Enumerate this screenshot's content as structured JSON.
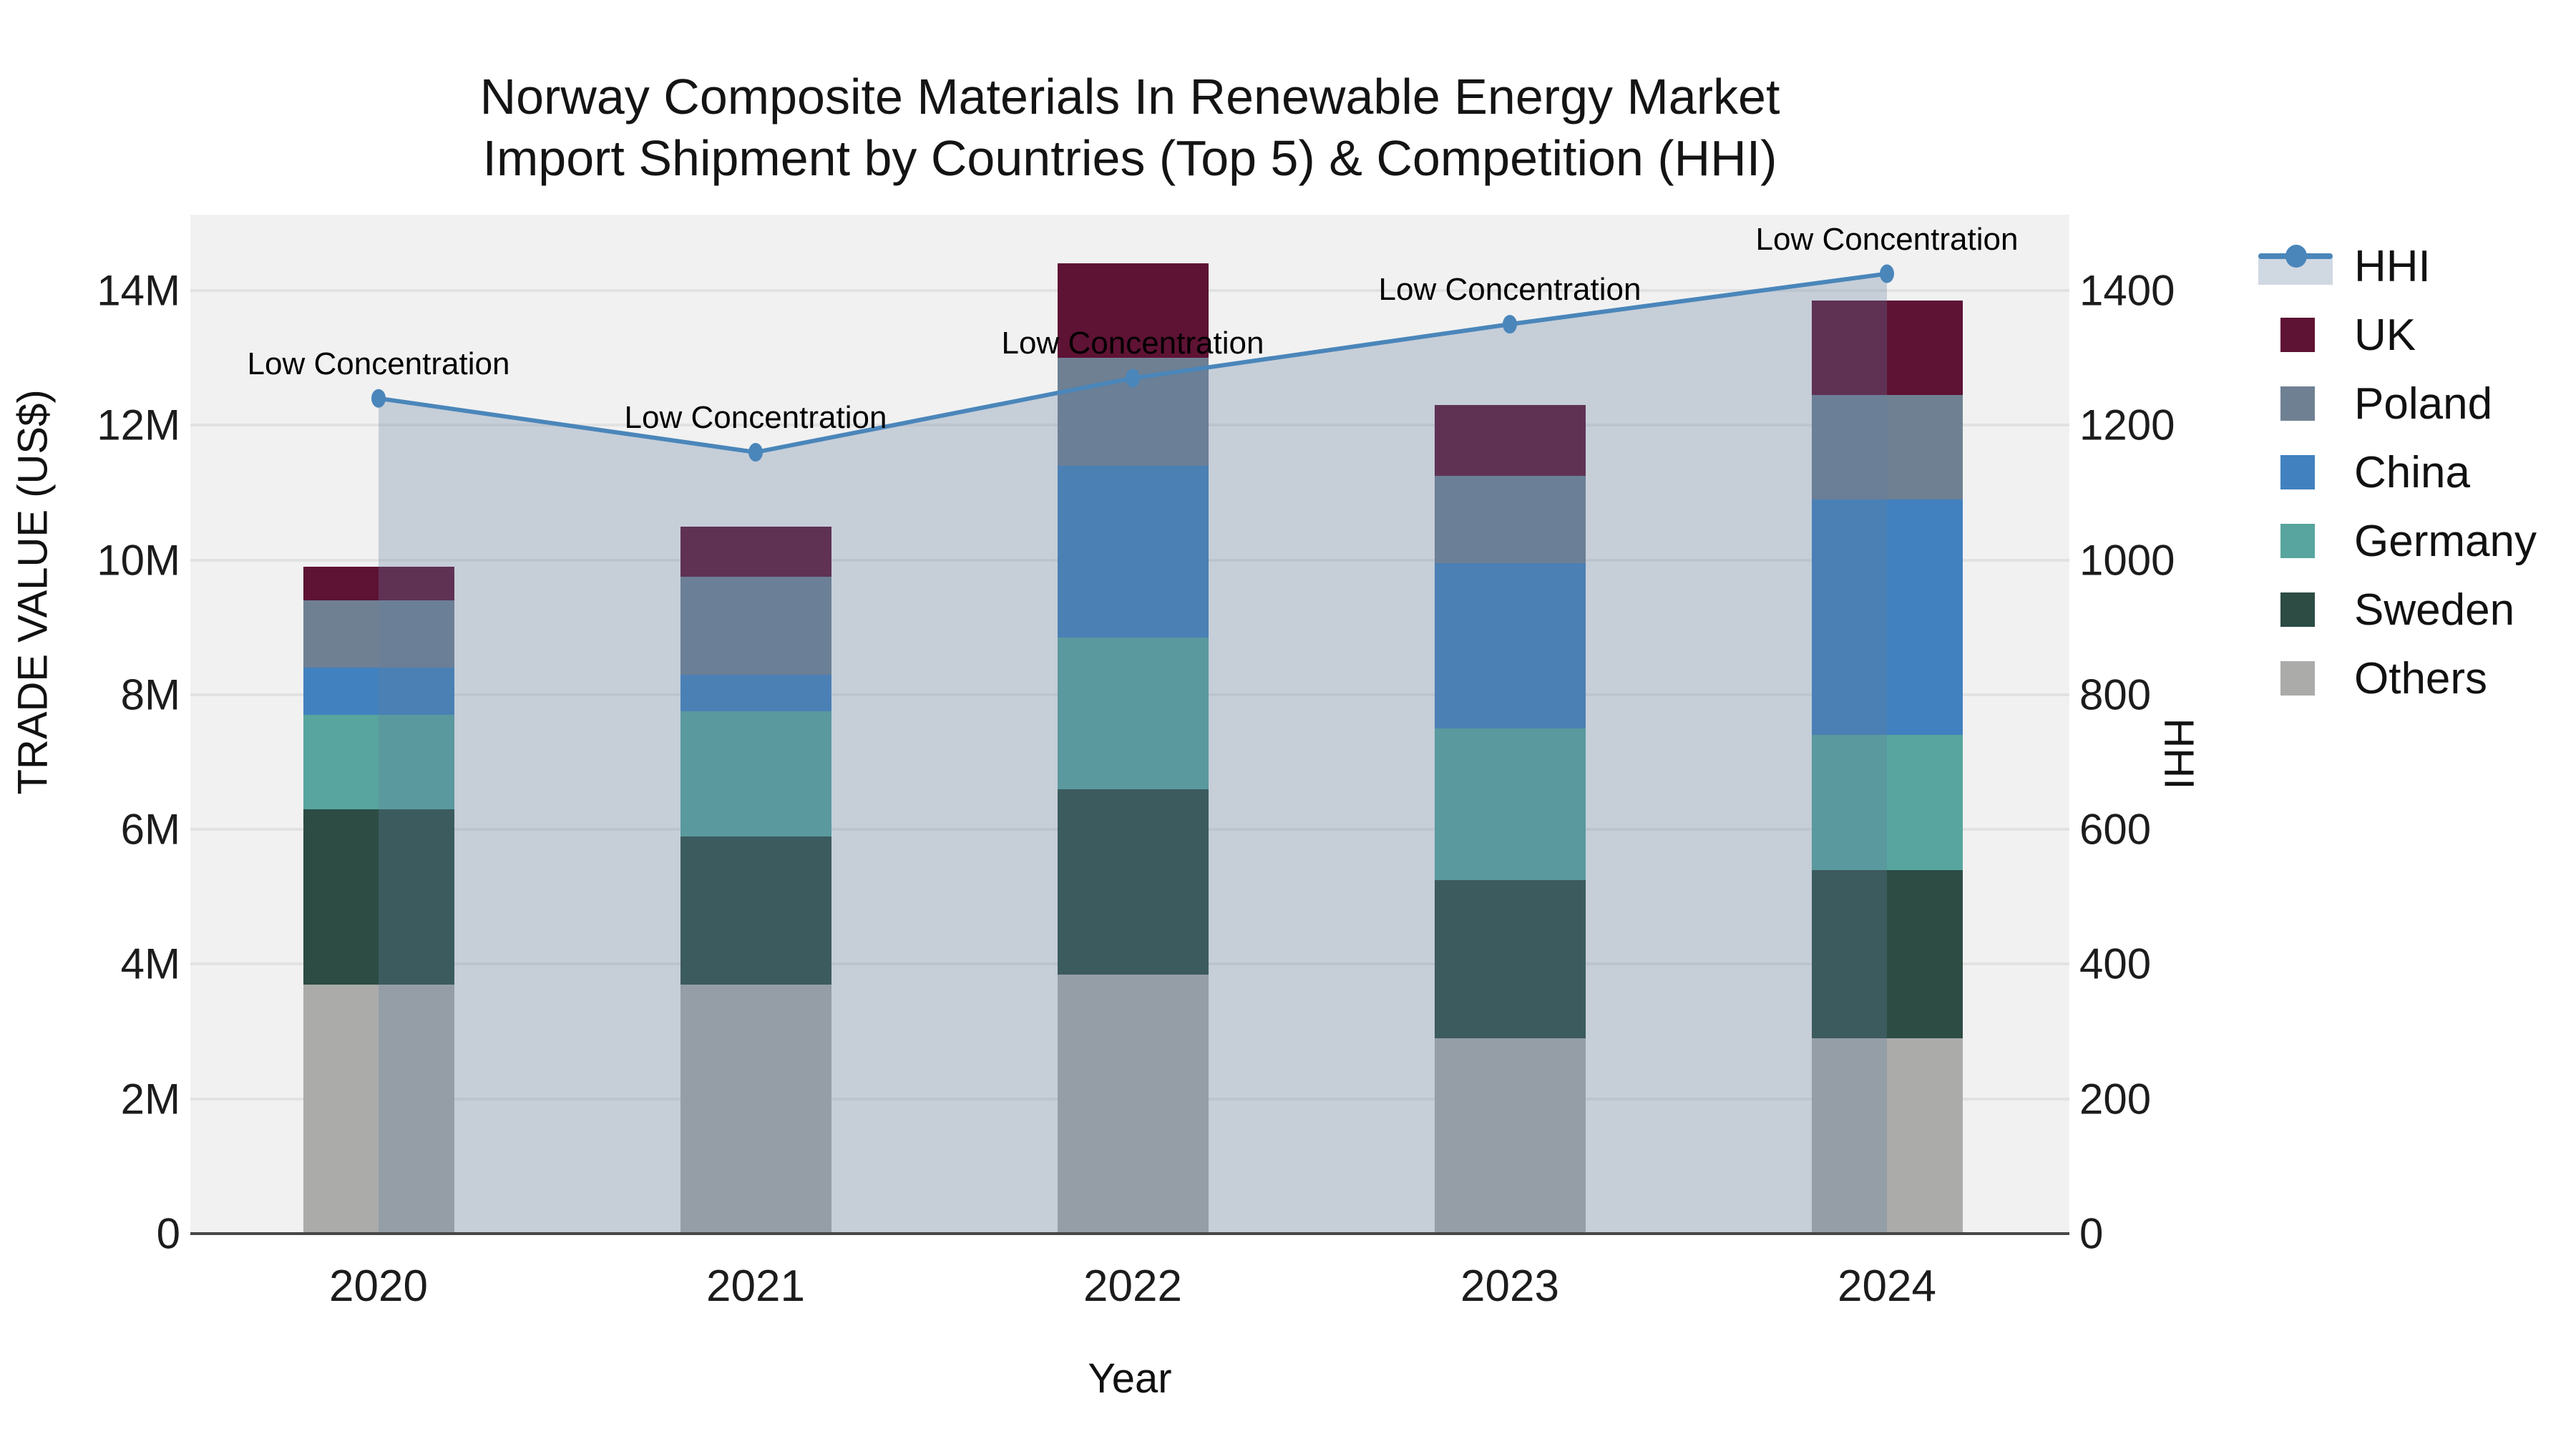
{
  "title": {
    "line1": "Norway Composite Materials In Renewable Energy Market",
    "line2": "Import Shipment by Countries (Top 5) & Competition (HHI)"
  },
  "axes": {
    "y_left": {
      "title": "TRADE VALUE (US$)",
      "ticks": [
        "0",
        "2M",
        "4M",
        "6M",
        "8M",
        "10M",
        "12M",
        "14M"
      ]
    },
    "y_right": {
      "title": "HHI",
      "ticks": [
        "0",
        "200",
        "400",
        "600",
        "800",
        "1000",
        "1200",
        "1400"
      ]
    },
    "x": {
      "title": "Year",
      "categories": [
        "2020",
        "2021",
        "2022",
        "2023",
        "2024"
      ]
    }
  },
  "legend": [
    {
      "label": "HHI",
      "type": "line"
    },
    {
      "label": "UK",
      "type": "square"
    },
    {
      "label": "Poland",
      "type": "square"
    },
    {
      "label": "China",
      "type": "square"
    },
    {
      "label": "Germany",
      "type": "square"
    },
    {
      "label": "Sweden",
      "type": "square"
    },
    {
      "label": "Others",
      "type": "square"
    }
  ],
  "colors": {
    "UK": "#5e1234",
    "Poland": "#6f8093",
    "China": "#4181bf",
    "Germany": "#57a59e",
    "Sweden": "#2c4c44",
    "Others": "#abacaa",
    "HHI_line": "#4a86ba",
    "HHI_fill": "rgba(100,126,160,0.30)",
    "plot_bg": "#f1f1f1",
    "gridline": "#e2e2e2",
    "axis_line": "#474747"
  },
  "chart_data": {
    "type": "bar",
    "stacked": true,
    "title": "Norway Composite Materials In Renewable Energy Market Import Shipment by Countries (Top 5) & Competition (HHI)",
    "xlabel": "Year",
    "ylabel_left": "TRADE VALUE (US$)",
    "ylabel_right": "HHI",
    "ylim_left_millions": [
      0,
      15.1
    ],
    "ylim_right": [
      0,
      1510
    ],
    "grid": true,
    "legend_position": "right",
    "categories": [
      "2020",
      "2021",
      "2022",
      "2023",
      "2024"
    ],
    "value_unit": "millions US$",
    "series": [
      {
        "name": "Others",
        "values": [
          3.7,
          3.7,
          3.85,
          2.9,
          2.9
        ]
      },
      {
        "name": "Sweden",
        "values": [
          2.6,
          2.2,
          2.75,
          2.35,
          2.5
        ]
      },
      {
        "name": "Germany",
        "values": [
          1.4,
          1.85,
          2.25,
          2.25,
          2.0
        ]
      },
      {
        "name": "China",
        "values": [
          0.7,
          0.55,
          2.55,
          2.45,
          3.5
        ]
      },
      {
        "name": "Poland",
        "values": [
          1.0,
          1.45,
          1.6,
          1.3,
          1.55
        ]
      },
      {
        "name": "UK",
        "values": [
          0.5,
          0.75,
          1.4,
          1.05,
          1.4
        ]
      }
    ],
    "bar_totals_millions": [
      9.9,
      10.5,
      14.4,
      12.3,
      13.85
    ],
    "line_series": {
      "name": "HHI",
      "axis": "right",
      "values": [
        1240,
        1160,
        1270,
        1350,
        1425
      ],
      "fill": "tozeroy",
      "annotations": [
        "Low Concentration",
        "Low Concentration",
        "Low Concentration",
        "Low Concentration",
        "Low Concentration"
      ]
    }
  }
}
